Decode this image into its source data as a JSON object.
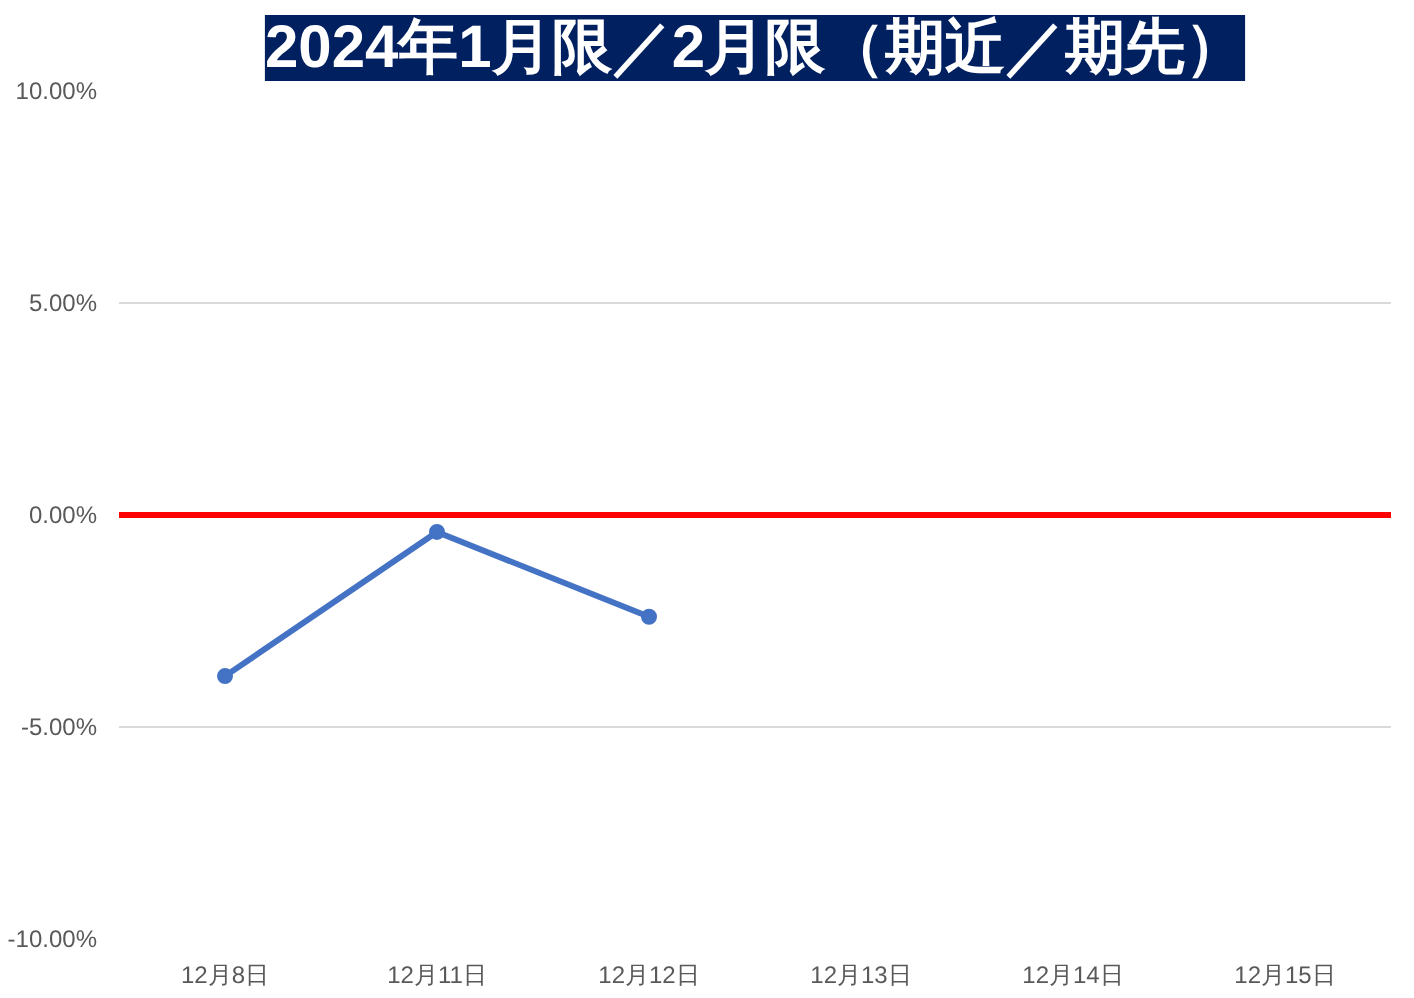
{
  "chart_data": {
    "type": "line",
    "title": "2024年1月限／2月限（期近／期先）",
    "categories": [
      "12月8日",
      "12月11日",
      "12月12日",
      "12月13日",
      "12月14日",
      "12月15日"
    ],
    "series": [
      {
        "color": "#4472c4",
        "values": [
          -3.8,
          -0.4,
          -2.4,
          null,
          null,
          null
        ]
      }
    ],
    "ylim": [
      -10,
      10
    ],
    "yticks": [
      {
        "value": -10,
        "label": "-10.00%"
      },
      {
        "value": -5,
        "label": "-5.00%"
      },
      {
        "value": 0,
        "label": "0.00%"
      },
      {
        "value": 5,
        "label": "5.00%"
      },
      {
        "value": 10,
        "label": "10.00%"
      }
    ],
    "ref_lines": [
      {
        "axis": "y",
        "value": 0,
        "color": "#ff0000"
      }
    ],
    "grid": "y",
    "marker": "circle",
    "line_style": "solid"
  }
}
